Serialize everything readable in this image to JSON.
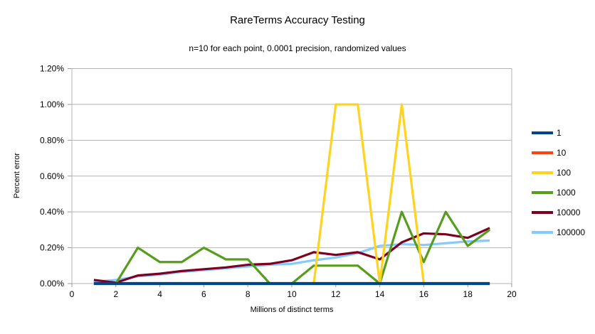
{
  "chart_data": {
    "type": "line",
    "title": "RareTerms Accuracy Testing",
    "subtitle": "n=10 for each point, 0.0001 precision, randomized values",
    "xlabel": "Millions of distinct terms",
    "ylabel": "Percent error",
    "xlim": [
      0,
      20
    ],
    "ylim_percent": [
      0,
      1.2
    ],
    "x_ticks": [
      0,
      2,
      4,
      6,
      8,
      10,
      12,
      14,
      16,
      18,
      20
    ],
    "y_ticks_percent": [
      0,
      0.2,
      0.4,
      0.6,
      0.8,
      1.0,
      1.2
    ],
    "y_tick_labels": [
      "0.00%",
      "0.20%",
      "0.40%",
      "0.60%",
      "0.80%",
      "1.00%",
      "1.20%"
    ],
    "grid": "horizontal",
    "legend_position": "right",
    "x": [
      1,
      2,
      3,
      4,
      5,
      6,
      7,
      8,
      9,
      10,
      11,
      12,
      13,
      14,
      15,
      16,
      17,
      18,
      19
    ],
    "series": [
      {
        "name": "1",
        "color": "#004586",
        "values_percent": [
          0,
          0,
          0,
          0,
          0,
          0,
          0,
          0,
          0,
          0,
          0,
          0,
          0,
          0,
          0,
          0,
          0,
          0,
          0
        ]
      },
      {
        "name": "10",
        "color": "#FF420E",
        "values_percent": [
          0,
          0,
          0,
          0,
          0,
          0,
          0,
          0,
          0,
          0,
          0,
          0,
          0,
          0,
          0,
          0,
          0,
          0,
          0
        ]
      },
      {
        "name": "100",
        "color": "#FFD320",
        "values_percent": [
          0,
          0,
          0,
          0,
          0,
          0,
          0,
          0,
          0,
          0,
          0,
          1.0,
          1.0,
          0,
          1.0,
          0,
          0,
          0,
          0
        ]
      },
      {
        "name": "1000",
        "color": "#579D1C",
        "values_percent": [
          0,
          0,
          0.2,
          0.12,
          0.12,
          0.2,
          0.135,
          0.135,
          0,
          0,
          0.1,
          0.1,
          0.1,
          0,
          0.4,
          0.12,
          0.4,
          0.21,
          0.3
        ]
      },
      {
        "name": "10000",
        "color": "#7E0021",
        "values_percent": [
          0.02,
          0.005,
          0.045,
          0.055,
          0.07,
          0.08,
          0.09,
          0.105,
          0.11,
          0.13,
          0.175,
          0.16,
          0.175,
          0.135,
          0.23,
          0.28,
          0.275,
          0.255,
          0.31
        ]
      },
      {
        "name": "100000",
        "color": "#83CAFF",
        "values_percent": [
          0.01,
          0.02,
          0.04,
          0.05,
          0.065,
          0.075,
          0.085,
          0.095,
          0.105,
          0.11,
          0.13,
          0.145,
          0.17,
          0.21,
          0.22,
          0.215,
          0.225,
          0.235,
          0.24
        ]
      }
    ],
    "style": {
      "grid_color": "#b3b3b3",
      "tick_color": "#999999",
      "text_color": "#000000"
    }
  }
}
